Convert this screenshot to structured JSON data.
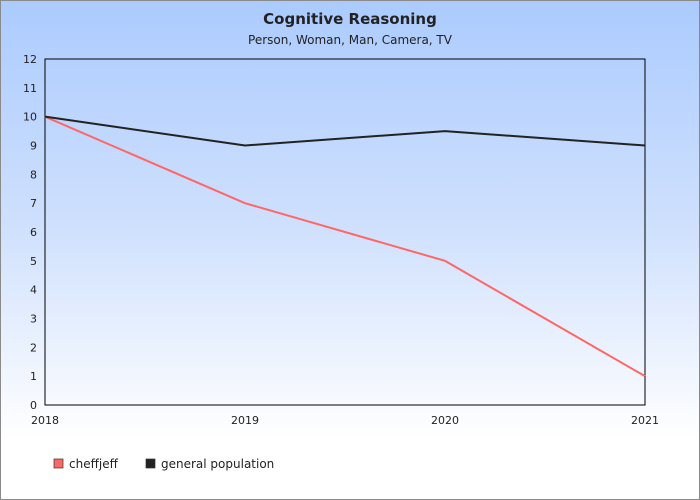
{
  "chart_data": {
    "type": "line",
    "title": "Cognitive Reasoning",
    "subtitle": "Person, Woman, Man, Camera, TV",
    "categories": [
      "2018",
      "2019",
      "2020",
      "2021"
    ],
    "ylim": [
      0,
      12
    ],
    "yticks": [
      "0",
      "1",
      "2",
      "3",
      "4",
      "5",
      "6",
      "7",
      "8",
      "9",
      "10",
      "11",
      "12"
    ],
    "grid": false,
    "legend_position": "bottom-left",
    "series": [
      {
        "name": "cheffjeff",
        "values": [
          10,
          7,
          5,
          1
        ],
        "color": "#ff6666"
      },
      {
        "name": "general population",
        "values": [
          10,
          9,
          9.5,
          9
        ],
        "color": "#222222"
      }
    ]
  }
}
